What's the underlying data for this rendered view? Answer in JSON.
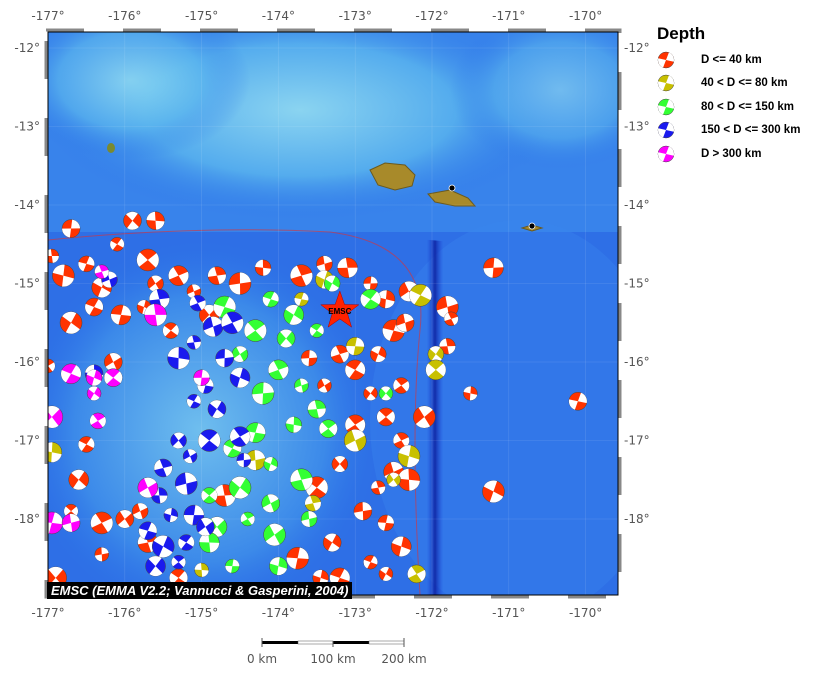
{
  "map": {
    "lon_range": [
      -177,
      -169.6
    ],
    "lat_range": [
      -12,
      -19
    ],
    "lon_ticks": [
      "-177°",
      "-176°",
      "-175°",
      "-174°",
      "-173°",
      "-172°",
      "-171°",
      "-170°"
    ],
    "lat_ticks": [
      "-12°",
      "-13°",
      "-14°",
      "-15°",
      "-16°",
      "-17°",
      "-18°"
    ],
    "epicenter_label": "EMSC",
    "epicenter": {
      "lon": -173.2,
      "lat": -15.35,
      "color": "#ff2200"
    },
    "credit": "EMSC (EMMA V2.2; Vannucci & Gasperini, 2004)"
  },
  "legend": {
    "title": "Depth",
    "items": [
      {
        "label": "D <= 40 km",
        "color": "#ff3300"
      },
      {
        "label": "40 < D <= 80 km",
        "color": "#c8c000"
      },
      {
        "label": "80 < D <= 150 km",
        "color": "#33ff33"
      },
      {
        "label": "150 < D <= 300 km",
        "color": "#1a1aee"
      },
      {
        "label": "D > 300 km",
        "color": "#ff00ff"
      }
    ]
  },
  "scale_bar": {
    "labels": [
      "0 km",
      "100 km",
      "200 km"
    ]
  },
  "events": [
    [
      -176.95,
      -14.65,
      0
    ],
    [
      -176.7,
      -14.3,
      0
    ],
    [
      -176.8,
      -14.9,
      0
    ],
    [
      -176.5,
      -14.75,
      0
    ],
    [
      -176.3,
      -15.05,
      0
    ],
    [
      -176.1,
      -14.5,
      0
    ],
    [
      -175.9,
      -14.2,
      0
    ],
    [
      -175.7,
      -14.7,
      0
    ],
    [
      -175.6,
      -15.0,
      0
    ],
    [
      -175.3,
      -14.9,
      0
    ],
    [
      -175.1,
      -15.1,
      0
    ],
    [
      -174.8,
      -14.9,
      0
    ],
    [
      -174.5,
      -15.0,
      0
    ],
    [
      -174.2,
      -14.8,
      0
    ],
    [
      -176.05,
      -15.4,
      0
    ],
    [
      -175.75,
      -15.3,
      0
    ],
    [
      -176.4,
      -15.3,
      0
    ],
    [
      -176.7,
      -15.5,
      0
    ],
    [
      -175.4,
      -15.6,
      0
    ],
    [
      -174.9,
      -15.4,
      0
    ],
    [
      -177.0,
      -16.05,
      0
    ],
    [
      -176.15,
      -16.0,
      0
    ],
    [
      -173.7,
      -14.9,
      0
    ],
    [
      -173.4,
      -14.75,
      0
    ],
    [
      -173.1,
      -14.8,
      0
    ],
    [
      -172.8,
      -15.0,
      0
    ],
    [
      -172.6,
      -15.2,
      0
    ],
    [
      -172.5,
      -15.6,
      0
    ],
    [
      -172.7,
      -15.9,
      0
    ],
    [
      -173.0,
      -16.1,
      0
    ],
    [
      -172.8,
      -16.4,
      0
    ],
    [
      -172.6,
      -16.7,
      0
    ],
    [
      -172.1,
      -16.7,
      0
    ],
    [
      -172.4,
      -17.0,
      0
    ],
    [
      -172.5,
      -17.4,
      0
    ],
    [
      -172.7,
      -17.6,
      0
    ],
    [
      -172.9,
      -17.9,
      0
    ],
    [
      -172.3,
      -17.5,
      0
    ],
    [
      -172.6,
      -18.05,
      0
    ],
    [
      -172.4,
      -18.35,
      0
    ],
    [
      -172.8,
      -18.55,
      0
    ],
    [
      -173.3,
      -18.3,
      0
    ],
    [
      -173.5,
      -17.6,
      0
    ],
    [
      -173.2,
      -17.3,
      0
    ],
    [
      -173.0,
      -16.8,
      0
    ],
    [
      -173.4,
      -16.3,
      0
    ],
    [
      -173.2,
      -15.9,
      0
    ],
    [
      -171.8,
      -15.3,
      0
    ],
    [
      -171.8,
      -15.8,
      0
    ],
    [
      -171.2,
      -14.8,
      0
    ],
    [
      -171.5,
      -16.4,
      0
    ],
    [
      -170.1,
      -16.5,
      0
    ],
    [
      -171.2,
      -17.65,
      0
    ],
    [
      -176.5,
      -17.05,
      0
    ],
    [
      -176.6,
      -17.5,
      0
    ],
    [
      -176.7,
      -17.9,
      0
    ],
    [
      -176.0,
      -18.0,
      0
    ],
    [
      -176.3,
      -18.05,
      0
    ],
    [
      -175.8,
      -17.9,
      0
    ],
    [
      -175.7,
      -18.3,
      0
    ],
    [
      -176.3,
      -18.45,
      0
    ],
    [
      -175.6,
      -14.2,
      0
    ],
    [
      -173.75,
      -18.5,
      0
    ],
    [
      -173.45,
      -18.75,
      0
    ],
    [
      -173.2,
      -18.75,
      0
    ],
    [
      -172.6,
      -18.7,
      0
    ],
    [
      -175.3,
      -18.75,
      0
    ],
    [
      -176.9,
      -18.75,
      0
    ],
    [
      -172.4,
      -16.3,
      0
    ],
    [
      -172.3,
      -15.1,
      0
    ],
    [
      -171.75,
      -15.45,
      0
    ],
    [
      -172.35,
      -15.5,
      0
    ],
    [
      -174.7,
      -17.7,
      0
    ],
    [
      -173.6,
      -15.95,
      0
    ],
    [
      -176.95,
      -17.15,
      1
    ],
    [
      -173.7,
      -15.2,
      1
    ],
    [
      -173.4,
      -14.95,
      1
    ],
    [
      -172.15,
      -15.15,
      1
    ],
    [
      -171.95,
      -15.9,
      1
    ],
    [
      -171.95,
      -16.1,
      1
    ],
    [
      -172.5,
      -17.5,
      1
    ],
    [
      -172.2,
      -18.7,
      1
    ],
    [
      -173.0,
      -17.0,
      1
    ],
    [
      -173.55,
      -17.8,
      1
    ],
    [
      -174.3,
      -17.25,
      1
    ],
    [
      -175.0,
      -18.65,
      1
    ],
    [
      -173.0,
      -15.8,
      1
    ],
    [
      -172.3,
      -17.2,
      1
    ],
    [
      -174.1,
      -15.2,
      2
    ],
    [
      -173.8,
      -15.4,
      2
    ],
    [
      -173.5,
      -15.6,
      2
    ],
    [
      -173.9,
      -15.7,
      2
    ],
    [
      -174.3,
      -15.6,
      2
    ],
    [
      -174.5,
      -15.9,
      2
    ],
    [
      -174.0,
      -16.1,
      2
    ],
    [
      -173.7,
      -16.3,
      2
    ],
    [
      -173.5,
      -16.6,
      2
    ],
    [
      -174.2,
      -16.4,
      2
    ],
    [
      -173.8,
      -16.8,
      2
    ],
    [
      -174.3,
      -16.9,
      2
    ],
    [
      -174.1,
      -17.3,
      2
    ],
    [
      -174.6,
      -17.1,
      2
    ],
    [
      -174.5,
      -17.6,
      2
    ],
    [
      -174.9,
      -17.7,
      2
    ],
    [
      -174.8,
      -18.1,
      2
    ],
    [
      -174.4,
      -18.0,
      2
    ],
    [
      -174.1,
      -17.8,
      2
    ],
    [
      -173.7,
      -17.5,
      2
    ],
    [
      -173.6,
      -18.0,
      2
    ],
    [
      -174.9,
      -18.3,
      2
    ],
    [
      -174.6,
      -18.6,
      2
    ],
    [
      -174.0,
      -18.6,
      2
    ],
    [
      -174.7,
      -15.3,
      2
    ],
    [
      -173.3,
      -15.0,
      2
    ],
    [
      -172.8,
      -15.2,
      2
    ],
    [
      -172.6,
      -16.4,
      2
    ],
    [
      -173.35,
      -16.85,
      2
    ],
    [
      -174.05,
      -18.2,
      2
    ],
    [
      -175.05,
      -15.25,
      3
    ],
    [
      -174.85,
      -15.55,
      3
    ],
    [
      -175.1,
      -15.75,
      3
    ],
    [
      -174.7,
      -15.95,
      3
    ],
    [
      -175.3,
      -15.95,
      3
    ],
    [
      -174.95,
      -16.3,
      3
    ],
    [
      -174.5,
      -16.2,
      3
    ],
    [
      -175.1,
      -16.5,
      3
    ],
    [
      -174.8,
      -16.6,
      3
    ],
    [
      -174.9,
      -17.0,
      3
    ],
    [
      -175.3,
      -17.0,
      3
    ],
    [
      -174.5,
      -16.95,
      3
    ],
    [
      -175.15,
      -17.2,
      3
    ],
    [
      -175.5,
      -17.35,
      3
    ],
    [
      -175.2,
      -17.55,
      3
    ],
    [
      -175.55,
      -17.7,
      3
    ],
    [
      -175.1,
      -17.95,
      3
    ],
    [
      -175.4,
      -17.95,
      3
    ],
    [
      -175.7,
      -18.15,
      3
    ],
    [
      -175.5,
      -18.35,
      3
    ],
    [
      -175.2,
      -18.3,
      3
    ],
    [
      -175.6,
      -18.6,
      3
    ],
    [
      -175.3,
      -18.55,
      3
    ],
    [
      -174.95,
      -18.1,
      3
    ],
    [
      -174.6,
      -15.5,
      3
    ],
    [
      -176.2,
      -14.95,
      3
    ],
    [
      -175.55,
      -15.2,
      3
    ],
    [
      -174.45,
      -17.25,
      3
    ],
    [
      -176.4,
      -16.15,
      3
    ],
    [
      -176.95,
      -18.05,
      4
    ],
    [
      -176.4,
      -16.2,
      4
    ],
    [
      -176.7,
      -16.15,
      4
    ],
    [
      -176.4,
      -16.4,
      4
    ],
    [
      -176.15,
      -16.2,
      4
    ],
    [
      -176.95,
      -16.7,
      4
    ],
    [
      -176.35,
      -16.75,
      4
    ],
    [
      -175.7,
      -17.6,
      4
    ],
    [
      -176.3,
      -14.85,
      4
    ],
    [
      -176.7,
      -18.05,
      4
    ],
    [
      -175.6,
      -15.4,
      4
    ],
    [
      -175.0,
      -16.2,
      4
    ]
  ]
}
